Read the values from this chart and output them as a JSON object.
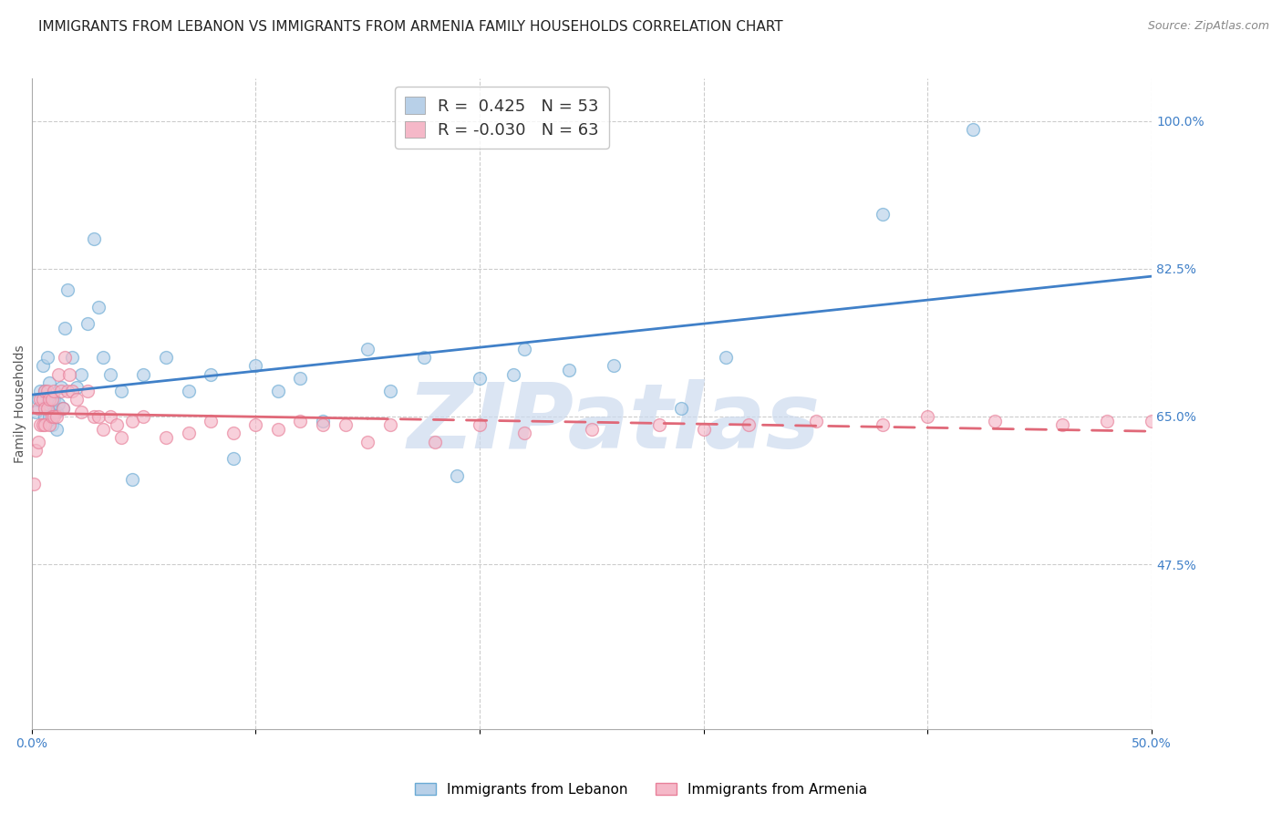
{
  "title": "IMMIGRANTS FROM LEBANON VS IMMIGRANTS FROM ARMENIA FAMILY HOUSEHOLDS CORRELATION CHART",
  "source": "Source: ZipAtlas.com",
  "ylabel": "Family Households",
  "xlim": [
    0.0,
    0.5
  ],
  "ylim": [
    0.28,
    1.05
  ],
  "xtick_positions": [
    0.0,
    0.1,
    0.2,
    0.3,
    0.4,
    0.5
  ],
  "xticklabels": [
    "0.0%",
    "",
    "",
    "",
    "",
    "50.0%"
  ],
  "ytick_labels_right": [
    "47.5%",
    "65.0%",
    "82.5%",
    "100.0%"
  ],
  "ytick_values_right": [
    0.475,
    0.65,
    0.825,
    1.0
  ],
  "watermark": "ZIPatlas",
  "legend_entries": [
    {
      "label": "R =  0.425   N = 53",
      "color": "#b8d0e8"
    },
    {
      "label": "R = -0.030   N = 63",
      "color": "#f5b8c8"
    }
  ],
  "lebanon_color": "#b8d0e8",
  "armenia_color": "#f5b8c8",
  "lebanon_edge": "#6aaad4",
  "armenia_edge": "#e8809a",
  "trend_lebanon_color": "#4080c8",
  "trend_armenia_color": "#e06878",
  "lebanon_x": [
    0.002,
    0.003,
    0.004,
    0.005,
    0.006,
    0.006,
    0.007,
    0.007,
    0.008,
    0.008,
    0.009,
    0.009,
    0.01,
    0.01,
    0.011,
    0.011,
    0.012,
    0.013,
    0.014,
    0.015,
    0.016,
    0.018,
    0.02,
    0.022,
    0.025,
    0.028,
    0.03,
    0.032,
    0.035,
    0.04,
    0.045,
    0.05,
    0.06,
    0.07,
    0.08,
    0.09,
    0.1,
    0.11,
    0.12,
    0.13,
    0.15,
    0.16,
    0.175,
    0.19,
    0.2,
    0.215,
    0.22,
    0.24,
    0.26,
    0.29,
    0.31,
    0.38,
    0.42
  ],
  "lebanon_y": [
    0.655,
    0.67,
    0.68,
    0.71,
    0.65,
    0.68,
    0.72,
    0.665,
    0.65,
    0.69,
    0.64,
    0.665,
    0.655,
    0.67,
    0.635,
    0.655,
    0.665,
    0.685,
    0.66,
    0.755,
    0.8,
    0.72,
    0.685,
    0.7,
    0.76,
    0.86,
    0.78,
    0.72,
    0.7,
    0.68,
    0.575,
    0.7,
    0.72,
    0.68,
    0.7,
    0.6,
    0.71,
    0.68,
    0.695,
    0.645,
    0.73,
    0.68,
    0.72,
    0.58,
    0.695,
    0.7,
    0.73,
    0.705,
    0.71,
    0.66,
    0.72,
    0.89,
    0.99
  ],
  "armenia_x": [
    0.001,
    0.002,
    0.003,
    0.003,
    0.004,
    0.004,
    0.005,
    0.005,
    0.006,
    0.006,
    0.006,
    0.007,
    0.007,
    0.008,
    0.008,
    0.009,
    0.009,
    0.01,
    0.01,
    0.011,
    0.012,
    0.013,
    0.014,
    0.015,
    0.016,
    0.017,
    0.018,
    0.02,
    0.022,
    0.025,
    0.028,
    0.03,
    0.032,
    0.035,
    0.038,
    0.04,
    0.045,
    0.05,
    0.06,
    0.07,
    0.08,
    0.09,
    0.1,
    0.11,
    0.12,
    0.13,
    0.14,
    0.15,
    0.16,
    0.18,
    0.2,
    0.22,
    0.25,
    0.28,
    0.3,
    0.32,
    0.35,
    0.38,
    0.4,
    0.43,
    0.46,
    0.48,
    0.5
  ],
  "armenia_y": [
    0.57,
    0.61,
    0.62,
    0.66,
    0.64,
    0.67,
    0.64,
    0.67,
    0.66,
    0.68,
    0.64,
    0.66,
    0.68,
    0.64,
    0.67,
    0.65,
    0.67,
    0.65,
    0.68,
    0.65,
    0.7,
    0.68,
    0.66,
    0.72,
    0.68,
    0.7,
    0.68,
    0.67,
    0.655,
    0.68,
    0.65,
    0.65,
    0.635,
    0.65,
    0.64,
    0.625,
    0.645,
    0.65,
    0.625,
    0.63,
    0.645,
    0.63,
    0.64,
    0.635,
    0.645,
    0.64,
    0.64,
    0.62,
    0.64,
    0.62,
    0.64,
    0.63,
    0.635,
    0.64,
    0.635,
    0.64,
    0.645,
    0.64,
    0.65,
    0.645,
    0.64,
    0.645,
    0.645
  ],
  "background_color": "#ffffff",
  "grid_color": "#cccccc",
  "axis_color": "#aaaaaa",
  "title_fontsize": 11,
  "label_fontsize": 10,
  "tick_fontsize": 10,
  "legend_fontsize": 13,
  "watermark_color": "#ccdaee",
  "watermark_fontsize": 72,
  "source_fontsize": 9,
  "dot_size": 100,
  "dot_alpha": 0.65,
  "trend_lw": 2.0,
  "trend_solid_end": 0.15,
  "trend_dashed_start": 0.15
}
